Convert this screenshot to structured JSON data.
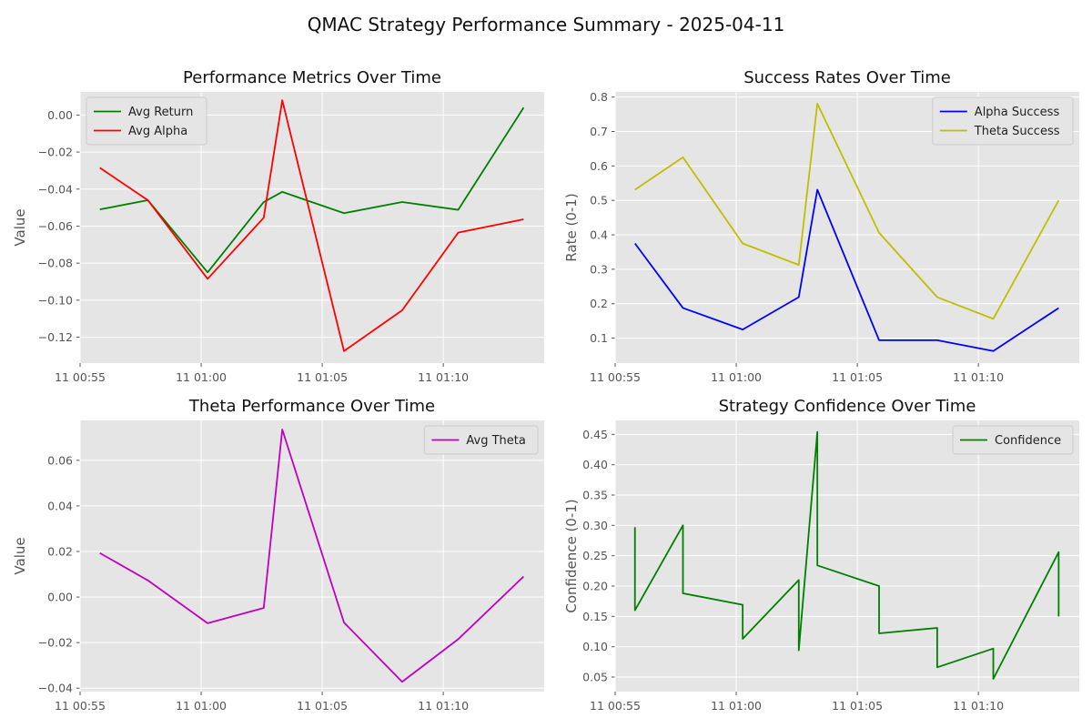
{
  "title": "QMAC Strategy Performance Summary - 2025-04-11",
  "colors": {
    "panel_bg": "#e5e5e5",
    "grid": "#ffffff"
  },
  "chart_data": [
    {
      "type": "line",
      "title": "Performance Metrics Over Time",
      "xlabel": "",
      "ylabel": "Value",
      "grid": true,
      "legend": "top-left",
      "xlim": [
        "00:55:00",
        "01:14:10"
      ],
      "ylim": [
        -0.134,
        0.0125
      ],
      "x_ticks": [
        {
          "t": "00:55:00",
          "label": "11 00:55"
        },
        {
          "t": "01:00:00",
          "label": "11 01:00"
        },
        {
          "t": "01:05:00",
          "label": "11 01:05"
        },
        {
          "t": "01:10:00",
          "label": "11 01:10"
        }
      ],
      "y_ticks": [
        {
          "v": 0.0,
          "label": "0.00"
        },
        {
          "v": -0.02,
          "label": "−0.02"
        },
        {
          "v": -0.04,
          "label": "−0.04"
        },
        {
          "v": -0.06,
          "label": "−0.06"
        },
        {
          "v": -0.08,
          "label": "−0.08"
        },
        {
          "v": -0.1,
          "label": "−0.10"
        },
        {
          "v": -0.12,
          "label": "−0.12"
        }
      ],
      "series": [
        {
          "name": "Avg Return",
          "color": "#008000",
          "points": [
            {
              "t": "00:55:49",
              "y": -0.051
            },
            {
              "t": "00:57:48",
              "y": -0.046
            },
            {
              "t": "01:00:16",
              "y": -0.085
            },
            {
              "t": "01:02:35",
              "y": -0.047
            },
            {
              "t": "01:03:21",
              "y": -0.0415
            },
            {
              "t": "01:05:54",
              "y": -0.053
            },
            {
              "t": "01:08:18",
              "y": -0.047
            },
            {
              "t": "01:10:37",
              "y": -0.0512
            },
            {
              "t": "01:13:19",
              "y": 0.004
            }
          ]
        },
        {
          "name": "Avg Alpha",
          "color": "#ff0000",
          "points": [
            {
              "t": "00:55:49",
              "y": -0.0285
            },
            {
              "t": "00:57:48",
              "y": -0.046
            },
            {
              "t": "01:00:16",
              "y": -0.0885
            },
            {
              "t": "01:02:35",
              "y": -0.0555
            },
            {
              "t": "01:03:21",
              "y": 0.008
            },
            {
              "t": "01:05:54",
              "y": -0.1275
            },
            {
              "t": "01:08:18",
              "y": -0.1055
            },
            {
              "t": "01:10:37",
              "y": -0.0635
            },
            {
              "t": "01:13:19",
              "y": -0.0563
            }
          ]
        }
      ]
    },
    {
      "type": "line",
      "title": "Success Rates Over Time",
      "xlabel": "",
      "ylabel": "Rate (0-1)",
      "grid": true,
      "legend": "top-right",
      "xlim": [
        "00:55:00",
        "01:14:10"
      ],
      "ylim": [
        0.0275,
        0.815
      ],
      "x_ticks": [
        {
          "t": "00:55:00",
          "label": "11 00:55"
        },
        {
          "t": "01:00:00",
          "label": "11 01:00"
        },
        {
          "t": "01:05:00",
          "label": "11 01:05"
        },
        {
          "t": "01:10:00",
          "label": "11 01:10"
        }
      ],
      "y_ticks": [
        {
          "v": 0.1,
          "label": "0.1"
        },
        {
          "v": 0.2,
          "label": "0.2"
        },
        {
          "v": 0.3,
          "label": "0.3"
        },
        {
          "v": 0.4,
          "label": "0.4"
        },
        {
          "v": 0.5,
          "label": "0.5"
        },
        {
          "v": 0.6,
          "label": "0.6"
        },
        {
          "v": 0.7,
          "label": "0.7"
        },
        {
          "v": 0.8,
          "label": "0.8"
        }
      ],
      "series": [
        {
          "name": "Alpha Success",
          "color": "#0000ff",
          "points": [
            {
              "t": "00:55:49",
              "y": 0.375
            },
            {
              "t": "00:57:48",
              "y": 0.1875
            },
            {
              "t": "01:00:16",
              "y": 0.125
            },
            {
              "t": "01:02:35",
              "y": 0.219
            },
            {
              "t": "01:03:21",
              "y": 0.531
            },
            {
              "t": "01:05:54",
              "y": 0.094
            },
            {
              "t": "01:08:18",
              "y": 0.094
            },
            {
              "t": "01:10:37",
              "y": 0.0625
            },
            {
              "t": "01:13:19",
              "y": 0.1875
            }
          ]
        },
        {
          "name": "Theta Success",
          "color": "#bfbf00",
          "points": [
            {
              "t": "00:55:49",
              "y": 0.531
            },
            {
              "t": "00:57:48",
              "y": 0.625
            },
            {
              "t": "01:00:16",
              "y": 0.375
            },
            {
              "t": "01:02:35",
              "y": 0.3125
            },
            {
              "t": "01:03:21",
              "y": 0.781
            },
            {
              "t": "01:05:54",
              "y": 0.406
            },
            {
              "t": "01:08:18",
              "y": 0.219
            },
            {
              "t": "01:10:37",
              "y": 0.156
            },
            {
              "t": "01:13:19",
              "y": 0.5
            }
          ]
        }
      ]
    },
    {
      "type": "line",
      "title": "Theta Performance Over Time",
      "xlabel": "",
      "ylabel": "Value",
      "grid": true,
      "legend": "top-right",
      "xlim": [
        "00:55:00",
        "01:14:10"
      ],
      "ylim": [
        -0.0415,
        0.0775
      ],
      "x_ticks": [
        {
          "t": "00:55:00",
          "label": "11 00:55"
        },
        {
          "t": "01:00:00",
          "label": "11 01:00"
        },
        {
          "t": "01:05:00",
          "label": "11 01:05"
        },
        {
          "t": "01:10:00",
          "label": "11 01:10"
        }
      ],
      "y_ticks": [
        {
          "v": 0.06,
          "label": "0.06"
        },
        {
          "v": 0.04,
          "label": "0.04"
        },
        {
          "v": 0.02,
          "label": "0.02"
        },
        {
          "v": 0.0,
          "label": "0.00"
        },
        {
          "v": -0.02,
          "label": "−0.02"
        },
        {
          "v": -0.04,
          "label": "−0.04"
        }
      ],
      "series": [
        {
          "name": "Avg Theta",
          "color": "#bf00bf",
          "points": [
            {
              "t": "00:55:49",
              "y": 0.0193
            },
            {
              "t": "00:57:48",
              "y": 0.0073
            },
            {
              "t": "01:00:16",
              "y": -0.0115
            },
            {
              "t": "01:02:35",
              "y": -0.0048
            },
            {
              "t": "01:03:21",
              "y": 0.0735
            },
            {
              "t": "01:05:54",
              "y": -0.0112
            },
            {
              "t": "01:08:18",
              "y": -0.0372
            },
            {
              "t": "01:10:37",
              "y": -0.0185
            },
            {
              "t": "01:13:19",
              "y": 0.009
            }
          ]
        }
      ]
    },
    {
      "type": "line",
      "title": "Strategy Confidence Over Time",
      "xlabel": "",
      "ylabel": "Confidence (0-1)",
      "grid": true,
      "legend": "top-right",
      "xlim": [
        "00:55:00",
        "01:14:10"
      ],
      "ylim": [
        0.026,
        0.473
      ],
      "x_ticks": [
        {
          "t": "00:55:00",
          "label": "11 00:55"
        },
        {
          "t": "01:00:00",
          "label": "11 01:00"
        },
        {
          "t": "01:05:00",
          "label": "11 01:05"
        },
        {
          "t": "01:10:00",
          "label": "11 01:10"
        }
      ],
      "y_ticks": [
        {
          "v": 0.05,
          "label": "0.05"
        },
        {
          "v": 0.1,
          "label": "0.10"
        },
        {
          "v": 0.15,
          "label": "0.15"
        },
        {
          "v": 0.2,
          "label": "0.20"
        },
        {
          "v": 0.25,
          "label": "0.25"
        },
        {
          "v": 0.3,
          "label": "0.30"
        },
        {
          "v": 0.35,
          "label": "0.35"
        },
        {
          "v": 0.4,
          "label": "0.40"
        },
        {
          "v": 0.45,
          "label": "0.45"
        }
      ],
      "series": [
        {
          "name": "Confidence",
          "color": "#008000",
          "points": [
            {
              "t": "00:55:49",
              "y": 0.297
            },
            {
              "t": "00:55:49",
              "y": 0.16
            },
            {
              "t": "00:57:48",
              "y": 0.3
            },
            {
              "t": "00:57:48",
              "y": 0.188
            },
            {
              "t": "01:00:16",
              "y": 0.169
            },
            {
              "t": "01:00:16",
              "y": 0.113
            },
            {
              "t": "01:02:35",
              "y": 0.21
            },
            {
              "t": "01:02:35",
              "y": 0.094
            },
            {
              "t": "01:03:21",
              "y": 0.454
            },
            {
              "t": "01:03:21",
              "y": 0.234
            },
            {
              "t": "01:05:54",
              "y": 0.2
            },
            {
              "t": "01:05:54",
              "y": 0.122
            },
            {
              "t": "01:08:18",
              "y": 0.131
            },
            {
              "t": "01:08:18",
              "y": 0.066
            },
            {
              "t": "01:10:37",
              "y": 0.097
            },
            {
              "t": "01:10:37",
              "y": 0.047
            },
            {
              "t": "01:13:19",
              "y": 0.256
            },
            {
              "t": "01:13:19",
              "y": 0.15
            }
          ]
        }
      ]
    }
  ]
}
